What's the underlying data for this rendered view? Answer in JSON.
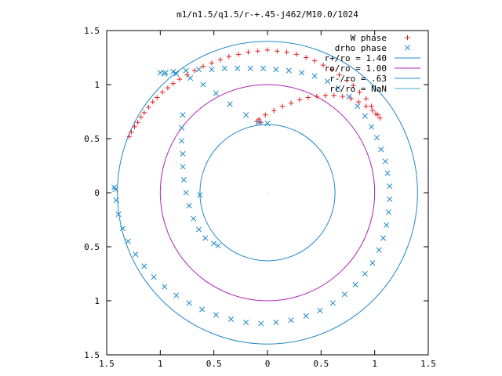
{
  "chart_data": {
    "type": "scatter",
    "title": "m1/n1.5/q1.5/r-+.45-j462/M10.0/1024",
    "xlabel": "",
    "ylabel": "",
    "xlim": [
      -1.5,
      1.5
    ],
    "ylim": [
      -1.5,
      1.5
    ],
    "x_ticks": [
      -1.5,
      -1,
      -0.5,
      0,
      0.5,
      1,
      1.5
    ],
    "x_tick_labels": [
      "1.5",
      "1",
      "0.5",
      "0",
      "0.5",
      "1",
      "1.5"
    ],
    "y_ticks": [
      1.5,
      1,
      0.5,
      0,
      -0.5,
      -1,
      -1.5
    ],
    "y_tick_labels": [
      "1.5",
      "1",
      "0.5",
      "0",
      "0.5",
      "1",
      "1.5"
    ],
    "grid": false,
    "legend_position": "top-right",
    "circles": [
      {
        "label": "r+/ro = 1.40",
        "radius": 1.4,
        "color": "#1e88c8"
      },
      {
        "label": "ro/ro = 1.00",
        "radius": 1.0,
        "color": "#b020b0"
      },
      {
        "label": "r-/ro = .63",
        "radius": 0.63,
        "color": "#1e88c8"
      },
      {
        "label": "rc/ro = NaN",
        "radius": null,
        "color": "#40b0e0"
      }
    ],
    "series": [
      {
        "name": "W phase",
        "marker": "plus",
        "color": "#e02020",
        "points": [
          [
            -1.29,
            0.52
          ],
          [
            -1.27,
            0.56
          ],
          [
            -1.24,
            0.61
          ],
          [
            -1.21,
            0.65
          ],
          [
            -1.18,
            0.7
          ],
          [
            -1.15,
            0.74
          ],
          [
            -1.11,
            0.79
          ],
          [
            -1.07,
            0.84
          ],
          [
            -1.03,
            0.88
          ],
          [
            -0.98,
            0.93
          ],
          [
            -0.93,
            0.97
          ],
          [
            -0.88,
            1.01
          ],
          [
            -0.82,
            1.05
          ],
          [
            -0.75,
            1.09
          ],
          [
            -0.68,
            1.13
          ],
          [
            -0.6,
            1.17
          ],
          [
            -0.52,
            1.2
          ],
          [
            -0.44,
            1.23
          ],
          [
            -0.36,
            1.26
          ],
          [
            -0.27,
            1.28
          ],
          [
            -0.18,
            1.3
          ],
          [
            -0.09,
            1.31
          ],
          [
            0.0,
            1.32
          ],
          [
            0.09,
            1.31
          ],
          [
            0.18,
            1.3
          ],
          [
            0.27,
            1.28
          ],
          [
            0.36,
            1.25
          ],
          [
            0.44,
            1.22
          ],
          [
            0.52,
            1.18
          ],
          [
            0.6,
            1.14
          ],
          [
            0.67,
            1.09
          ],
          [
            0.74,
            1.04
          ],
          [
            0.8,
            0.99
          ],
          [
            0.86,
            0.93
          ],
          [
            0.92,
            0.87
          ],
          [
            0.97,
            0.8
          ],
          [
            1.01,
            0.73
          ],
          [
            1.05,
            0.69
          ],
          [
            1.03,
            0.72
          ],
          [
            0.98,
            0.76
          ],
          [
            0.92,
            0.8
          ],
          [
            0.85,
            0.84
          ],
          [
            0.78,
            0.87
          ],
          [
            0.7,
            0.89
          ],
          [
            0.62,
            0.9
          ],
          [
            0.54,
            0.9
          ],
          [
            0.46,
            0.89
          ],
          [
            0.38,
            0.88
          ],
          [
            0.3,
            0.86
          ],
          [
            0.22,
            0.83
          ],
          [
            0.14,
            0.8
          ],
          [
            0.06,
            0.76
          ],
          [
            -0.02,
            0.72
          ],
          [
            -0.08,
            0.68
          ],
          [
            -0.1,
            0.66
          ],
          [
            -0.06,
            0.65
          ]
        ]
      },
      {
        "name": "drho phase",
        "marker": "cross",
        "color": "#1e88c8",
        "points": [
          [
            0.0,
            0.64
          ],
          [
            -0.08,
            0.65
          ],
          [
            -0.2,
            0.72
          ],
          [
            -0.35,
            0.82
          ],
          [
            -0.48,
            0.92
          ],
          [
            -0.6,
            1.0
          ],
          [
            -0.72,
            1.06
          ],
          [
            -0.85,
            1.1
          ],
          [
            -0.95,
            1.11
          ],
          [
            -1.0,
            1.11
          ],
          [
            -0.96,
            1.1
          ],
          [
            -0.88,
            1.12
          ],
          [
            -0.76,
            1.13
          ],
          [
            -0.64,
            1.14
          ],
          [
            -0.52,
            1.14
          ],
          [
            -0.4,
            1.15
          ],
          [
            -0.28,
            1.15
          ],
          [
            -0.16,
            1.15
          ],
          [
            -0.04,
            1.15
          ],
          [
            0.08,
            1.14
          ],
          [
            0.2,
            1.13
          ],
          [
            0.32,
            1.11
          ],
          [
            0.44,
            1.08
          ],
          [
            0.56,
            1.03
          ],
          [
            0.66,
            0.97
          ],
          [
            0.76,
            0.89
          ],
          [
            0.84,
            0.8
          ],
          [
            0.91,
            0.71
          ],
          [
            0.97,
            0.61
          ],
          [
            1.02,
            0.51
          ],
          [
            1.06,
            0.4
          ],
          [
            1.1,
            0.29
          ],
          [
            1.12,
            0.18
          ],
          [
            1.14,
            0.06
          ],
          [
            1.14,
            -0.06
          ],
          [
            1.13,
            -0.18
          ],
          [
            1.11,
            -0.3
          ],
          [
            1.08,
            -0.42
          ],
          [
            1.04,
            -0.53
          ],
          [
            0.98,
            -0.65
          ],
          [
            0.91,
            -0.75
          ],
          [
            0.82,
            -0.85
          ],
          [
            0.72,
            -0.94
          ],
          [
            0.61,
            -1.02
          ],
          [
            0.49,
            -1.09
          ],
          [
            0.36,
            -1.14
          ],
          [
            0.22,
            -1.18
          ],
          [
            0.08,
            -1.2
          ],
          [
            -0.06,
            -1.21
          ],
          [
            -0.2,
            -1.2
          ],
          [
            -0.34,
            -1.17
          ],
          [
            -0.48,
            -1.13
          ],
          [
            -0.61,
            -1.08
          ],
          [
            -0.73,
            -1.02
          ],
          [
            -0.85,
            -0.95
          ],
          [
            -0.96,
            -0.87
          ],
          [
            -1.06,
            -0.78
          ],
          [
            -1.15,
            -0.68
          ],
          [
            -1.23,
            -0.57
          ],
          [
            -1.3,
            -0.45
          ],
          [
            -1.35,
            -0.33
          ],
          [
            -1.39,
            -0.2
          ],
          [
            -1.41,
            -0.07
          ],
          [
            -1.42,
            0.03
          ],
          [
            -1.43,
            0.05
          ],
          [
            -0.79,
            0.72
          ],
          [
            -0.8,
            0.6
          ],
          [
            -0.8,
            0.48
          ],
          [
            -0.79,
            0.36
          ],
          [
            -0.79,
            0.24
          ],
          [
            -0.78,
            0.12
          ],
          [
            -0.76,
            0.0
          ],
          [
            -0.73,
            -0.12
          ],
          [
            -0.69,
            -0.24
          ],
          [
            -0.64,
            -0.34
          ],
          [
            -0.58,
            -0.42
          ],
          [
            -0.5,
            -0.47
          ],
          [
            -0.46,
            -0.49
          ],
          [
            -0.63,
            -0.02
          ]
        ]
      }
    ]
  }
}
